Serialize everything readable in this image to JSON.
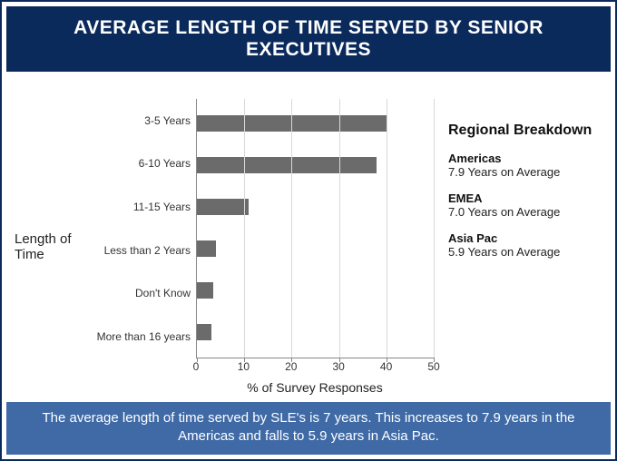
{
  "title": "AVERAGE LENGTH OF TIME SERVED BY SENIOR EXECUTIVES",
  "title_bg": "#0b2a5c",
  "title_fontsize": 21,
  "footer_text": "The average length of time served by SLE's is 7 years. This increases to 7.9 years in the Americas and falls to 5.9 years in Asia Pac.",
  "footer_bg": "#3f6aa6",
  "footer_fontsize": 15,
  "chart": {
    "type": "bar-horizontal",
    "y_axis_label": "Length of Time",
    "y_axis_label_fontsize": 15,
    "x_axis_label": "% of Survey Responses",
    "x_axis_label_fontsize": 14,
    "xlim": [
      0,
      50
    ],
    "xtick_step": 10,
    "xtick_labels": [
      "0",
      "10",
      "20",
      "30",
      "40",
      "50"
    ],
    "tick_fontsize": 12,
    "cat_label_fontsize": 12,
    "categories": [
      "3-5 Years",
      "6-10 Years",
      "11-15 Years",
      "Less than 2 Years",
      "Don't Know",
      "More than 16 years"
    ],
    "values": [
      40,
      38,
      11,
      4,
      3.5,
      3
    ],
    "bar_color": "#6b6b6b",
    "grid_color": "#d9d9d9",
    "axis_color": "#888888",
    "background_color": "#ffffff"
  },
  "regional": {
    "title": "Regional Breakdown",
    "title_fontsize": 16,
    "item_fontsize": 13,
    "items": [
      {
        "name": "Americas",
        "value": "7.9 Years on Average"
      },
      {
        "name": "EMEA",
        "value": "7.0 Years on Average"
      },
      {
        "name": "Asia Pac",
        "value": "5.9 Years on Average"
      }
    ]
  }
}
